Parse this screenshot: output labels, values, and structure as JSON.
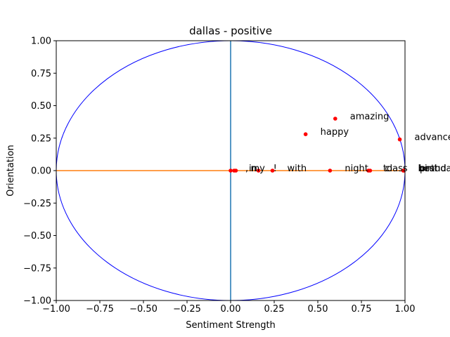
{
  "chart_data": {
    "type": "scatter",
    "title": "dallas - positive",
    "xlabel": "Sentiment Strength",
    "ylabel": "Orientation",
    "xlim": [
      -1.0,
      1.0
    ],
    "ylim": [
      -1.0,
      1.0
    ],
    "xticks": [
      "−1.00",
      "−0.75",
      "−0.50",
      "−0.25",
      "0.00",
      "0.25",
      "0.50",
      "0.75",
      "1.00"
    ],
    "yticks": [
      "−1.00",
      "−0.75",
      "−0.50",
      "−0.25",
      "0.00",
      "0.25",
      "0.50",
      "0.75",
      "1.00"
    ],
    "grid": false,
    "legend": "none",
    "unit_circle": {
      "color": "#0000ff"
    },
    "reference_lines": {
      "vertical_color": "#1f77b4",
      "horizontal_color": "#ff7f0e"
    },
    "points": [
      {
        "word": "amazing",
        "x": 0.6,
        "y": 0.4
      },
      {
        "word": "happy",
        "x": 0.43,
        "y": 0.28
      },
      {
        "word": "advanced",
        "x": 0.97,
        "y": 0.24
      },
      {
        "word": ",",
        "x": 0.0,
        "y": 0.0
      },
      {
        "word": "in",
        "x": 0.02,
        "y": 0.0
      },
      {
        "word": "my",
        "x": 0.03,
        "y": 0.0
      },
      {
        "word": "!",
        "x": 0.16,
        "y": 0.0
      },
      {
        "word": "with",
        "x": 0.24,
        "y": 0.0
      },
      {
        "word": "night",
        "x": 0.57,
        "y": 0.0
      },
      {
        "word": "to",
        "x": 0.79,
        "y": 0.0
      },
      {
        "word": "class",
        "x": 0.8,
        "y": 0.0
      },
      {
        "word": "best",
        "x": 0.99,
        "y": 0.0
      },
      {
        "word": "birthday",
        "x": 0.995,
        "y": 0.0
      },
      {
        "word": "proud",
        "x": 1.0,
        "y": 0.0
      }
    ],
    "point_color": "#ff0000"
  }
}
